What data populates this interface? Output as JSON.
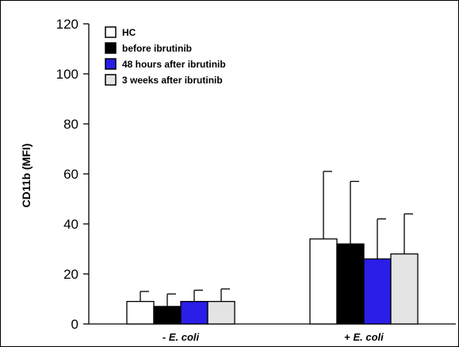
{
  "chart_data": {
    "type": "bar",
    "ylabel": "CD11b (MFI)",
    "ylim": [
      0,
      120
    ],
    "yticks": [
      0,
      20,
      40,
      60,
      80,
      100,
      120
    ],
    "categories": [
      {
        "prefix": "- ",
        "name": "E. coli"
      },
      {
        "prefix": "+ ",
        "name": "E. coli"
      }
    ],
    "series": [
      {
        "name": "HC",
        "color": "#ffffff",
        "values": [
          9,
          34
        ],
        "errors": [
          4,
          27
        ]
      },
      {
        "name": "before ibrutinib",
        "color": "#000000",
        "values": [
          7,
          32
        ],
        "errors": [
          5,
          25
        ]
      },
      {
        "name": "48 hours after ibrutinib",
        "color": "#2a1ee8",
        "values": [
          9,
          26
        ],
        "errors": [
          4.5,
          16
        ]
      },
      {
        "name": "3 weeks after ibrutinib",
        "color": "#e4e4e4",
        "values": [
          9,
          28
        ],
        "errors": [
          5,
          16
        ]
      }
    ],
    "legend": "top-left",
    "grid": false
  }
}
